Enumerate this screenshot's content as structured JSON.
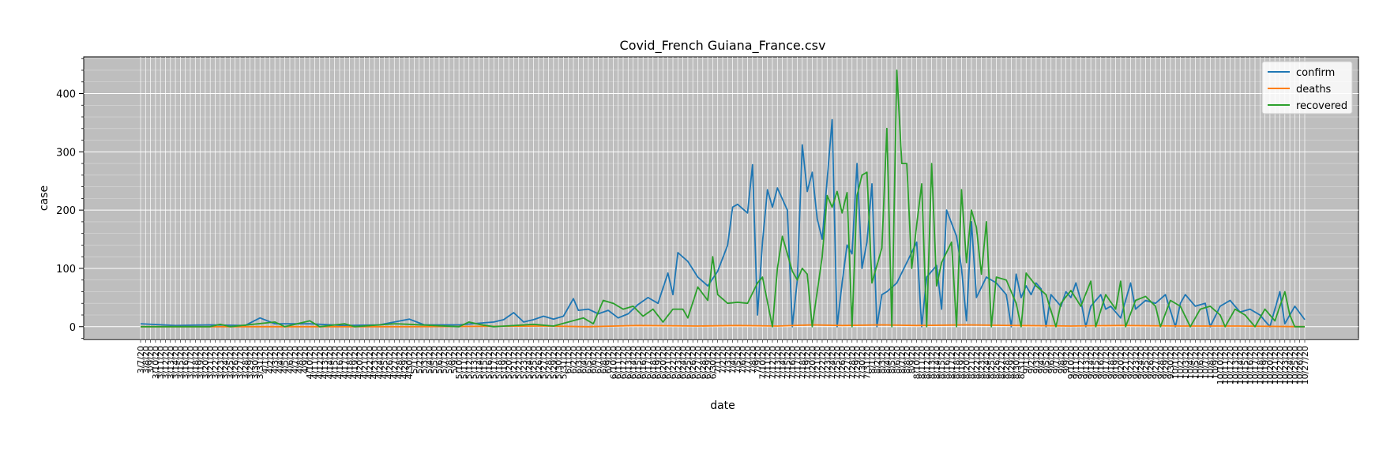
{
  "chart_data": {
    "type": "line",
    "title": "Covid_French Guiana_France.csv",
    "xlabel": "date",
    "ylabel": "case",
    "start_date": "3/7/20",
    "end_date": "10/27/20",
    "ylim": [
      -22,
      463
    ],
    "yticks": [
      0,
      100,
      200,
      300,
      400
    ],
    "grid": true,
    "legend_position": "top-right",
    "series": [
      {
        "name": "confirm",
        "color": "#1f77b4",
        "points": [
          [
            "3/7/20",
            5
          ],
          [
            "3/14/20",
            2
          ],
          [
            "3/21/20",
            3
          ],
          [
            "3/28/20",
            2
          ],
          [
            "3/31/20",
            15
          ],
          [
            "4/3/20",
            5
          ],
          [
            "4/10/20",
            5
          ],
          [
            "4/17/20",
            2
          ],
          [
            "4/24/20",
            3
          ],
          [
            "4/27/20",
            8
          ],
          [
            "4/30/20",
            13
          ],
          [
            "5/3/20",
            3
          ],
          [
            "5/10/20",
            3
          ],
          [
            "5/17/20",
            8
          ],
          [
            "5/19/20",
            12
          ],
          [
            "5/21/20",
            24
          ],
          [
            "5/23/20",
            8
          ],
          [
            "5/25/20",
            12
          ],
          [
            "5/27/20",
            18
          ],
          [
            "5/29/20",
            13
          ],
          [
            "5/31/20",
            18
          ],
          [
            "6/2/20",
            48
          ],
          [
            "6/3/20",
            28
          ],
          [
            "6/5/20",
            30
          ],
          [
            "6/7/20",
            22
          ],
          [
            "6/9/20",
            28
          ],
          [
            "6/11/20",
            15
          ],
          [
            "6/13/20",
            22
          ],
          [
            "6/15/20",
            38
          ],
          [
            "6/17/20",
            50
          ],
          [
            "6/19/20",
            40
          ],
          [
            "6/21/20",
            92
          ],
          [
            "6/22/20",
            55
          ],
          [
            "6/23/20",
            127
          ],
          [
            "6/25/20",
            112
          ],
          [
            "6/27/20",
            85
          ],
          [
            "6/29/20",
            70
          ],
          [
            "7/1/20",
            95
          ],
          [
            "7/3/20",
            140
          ],
          [
            "7/4/20",
            205
          ],
          [
            "7/5/20",
            210
          ],
          [
            "7/7/20",
            195
          ],
          [
            "7/8/20",
            278
          ],
          [
            "7/9/20",
            20
          ],
          [
            "7/10/20",
            145
          ],
          [
            "7/11/20",
            235
          ],
          [
            "7/12/20",
            205
          ],
          [
            "7/13/20",
            238
          ],
          [
            "7/15/20",
            200
          ],
          [
            "7/16/20",
            0
          ],
          [
            "7/17/20",
            80
          ],
          [
            "7/18/20",
            312
          ],
          [
            "7/19/20",
            232
          ],
          [
            "7/20/20",
            265
          ],
          [
            "7/21/20",
            185
          ],
          [
            "7/22/20",
            150
          ],
          [
            "7/24/20",
            355
          ],
          [
            "7/25/20",
            0
          ],
          [
            "7/26/20",
            75
          ],
          [
            "7/27/20",
            140
          ],
          [
            "7/28/20",
            125
          ],
          [
            "7/29/20",
            280
          ],
          [
            "7/30/20",
            100
          ],
          [
            "7/31/20",
            145
          ],
          [
            "8/1/20",
            245
          ],
          [
            "8/2/20",
            0
          ],
          [
            "8/3/20",
            55
          ],
          [
            "8/4/20",
            60
          ],
          [
            "8/6/20",
            75
          ],
          [
            "8/8/20",
            110
          ],
          [
            "8/10/20",
            145
          ],
          [
            "8/11/20",
            0
          ],
          [
            "8/12/20",
            85
          ],
          [
            "8/14/20",
            105
          ],
          [
            "8/15/20",
            30
          ],
          [
            "8/16/20",
            200
          ],
          [
            "8/18/20",
            155
          ],
          [
            "8/19/20",
            100
          ],
          [
            "8/20/20",
            10
          ],
          [
            "8/21/20",
            180
          ],
          [
            "8/22/20",
            50
          ],
          [
            "8/24/20",
            85
          ],
          [
            "8/26/20",
            75
          ],
          [
            "8/28/20",
            55
          ],
          [
            "8/29/20",
            0
          ],
          [
            "8/30/20",
            90
          ],
          [
            "8/31/20",
            50
          ],
          [
            "9/1/20",
            70
          ],
          [
            "9/2/20",
            55
          ],
          [
            "9/3/20",
            75
          ],
          [
            "9/4/20",
            65
          ],
          [
            "9/5/20",
            0
          ],
          [
            "9/6/20",
            55
          ],
          [
            "9/8/20",
            35
          ],
          [
            "9/9/20",
            60
          ],
          [
            "9/10/20",
            50
          ],
          [
            "9/11/20",
            75
          ],
          [
            "9/12/20",
            45
          ],
          [
            "9/13/20",
            0
          ],
          [
            "9/14/20",
            35
          ],
          [
            "9/16/20",
            55
          ],
          [
            "9/17/20",
            30
          ],
          [
            "9/18/20",
            35
          ],
          [
            "9/20/20",
            15
          ],
          [
            "9/22/20",
            75
          ],
          [
            "9/23/20",
            30
          ],
          [
            "9/25/20",
            45
          ],
          [
            "9/27/20",
            40
          ],
          [
            "9/29/20",
            55
          ],
          [
            "10/1/20",
            0
          ],
          [
            "10/2/20",
            40
          ],
          [
            "10/3/20",
            55
          ],
          [
            "10/5/20",
            35
          ],
          [
            "10/7/20",
            40
          ],
          [
            "10/8/20",
            0
          ],
          [
            "10/10/20",
            35
          ],
          [
            "10/12/20",
            45
          ],
          [
            "10/14/20",
            25
          ],
          [
            "10/16/20",
            30
          ],
          [
            "10/18/20",
            20
          ],
          [
            "10/20/20",
            0
          ],
          [
            "10/22/20",
            60
          ],
          [
            "10/23/20",
            5
          ],
          [
            "10/25/20",
            35
          ],
          [
            "10/27/20",
            12
          ]
        ]
      },
      {
        "name": "deaths",
        "color": "#ff7f0e",
        "points": [
          [
            "3/7/20",
            0
          ],
          [
            "4/30/20",
            0
          ],
          [
            "5/27/20",
            1
          ],
          [
            "6/5/20",
            0
          ],
          [
            "6/15/20",
            2
          ],
          [
            "6/27/20",
            1
          ],
          [
            "7/5/20",
            2
          ],
          [
            "7/13/20",
            1
          ],
          [
            "7/20/20",
            3
          ],
          [
            "7/26/20",
            2
          ],
          [
            "8/3/20",
            3
          ],
          [
            "8/10/20",
            2
          ],
          [
            "8/20/20",
            3
          ],
          [
            "8/30/20",
            2
          ],
          [
            "9/10/20",
            1
          ],
          [
            "9/20/20",
            2
          ],
          [
            "10/2/20",
            1
          ],
          [
            "10/14/20",
            1
          ],
          [
            "10/27/20",
            0
          ]
        ]
      },
      {
        "name": "recovered",
        "color": "#2ca02c",
        "points": [
          [
            "3/7/20",
            0
          ],
          [
            "3/21/20",
            0
          ],
          [
            "3/23/20",
            4
          ],
          [
            "3/25/20",
            0
          ],
          [
            "4/3/20",
            8
          ],
          [
            "4/5/20",
            0
          ],
          [
            "4/10/20",
            10
          ],
          [
            "4/12/20",
            0
          ],
          [
            "4/17/20",
            5
          ],
          [
            "4/19/20",
            0
          ],
          [
            "4/27/20",
            5
          ],
          [
            "4/30/20",
            4
          ],
          [
            "5/10/20",
            0
          ],
          [
            "5/12/20",
            8
          ],
          [
            "5/14/20",
            4
          ],
          [
            "5/17/20",
            0
          ],
          [
            "5/25/20",
            4
          ],
          [
            "5/29/20",
            1
          ],
          [
            "6/1/20",
            8
          ],
          [
            "6/4/20",
            15
          ],
          [
            "6/6/20",
            5
          ],
          [
            "6/8/20",
            45
          ],
          [
            "6/10/20",
            40
          ],
          [
            "6/12/20",
            30
          ],
          [
            "6/14/20",
            35
          ],
          [
            "6/16/20",
            18
          ],
          [
            "6/18/20",
            30
          ],
          [
            "6/20/20",
            8
          ],
          [
            "6/22/20",
            30
          ],
          [
            "6/24/20",
            30
          ],
          [
            "6/25/20",
            15
          ],
          [
            "6/27/20",
            68
          ],
          [
            "6/29/20",
            45
          ],
          [
            "6/30/20",
            120
          ],
          [
            "7/1/20",
            55
          ],
          [
            "7/3/20",
            40
          ],
          [
            "7/5/20",
            42
          ],
          [
            "7/7/20",
            40
          ],
          [
            "7/9/20",
            75
          ],
          [
            "7/10/20",
            85
          ],
          [
            "7/12/20",
            0
          ],
          [
            "7/13/20",
            100
          ],
          [
            "7/14/20",
            155
          ],
          [
            "7/16/20",
            95
          ],
          [
            "7/17/20",
            80
          ],
          [
            "7/18/20",
            100
          ],
          [
            "7/19/20",
            90
          ],
          [
            "7/20/20",
            0
          ],
          [
            "7/22/20",
            120
          ],
          [
            "7/23/20",
            225
          ],
          [
            "7/24/20",
            205
          ],
          [
            "7/25/20",
            232
          ],
          [
            "7/26/20",
            195
          ],
          [
            "7/27/20",
            230
          ],
          [
            "7/28/20",
            0
          ],
          [
            "7/29/20",
            225
          ],
          [
            "7/30/20",
            260
          ],
          [
            "7/31/20",
            265
          ],
          [
            "8/1/20",
            75
          ],
          [
            "8/3/20",
            135
          ],
          [
            "8/4/20",
            340
          ],
          [
            "8/5/20",
            0
          ],
          [
            "8/6/20",
            440
          ],
          [
            "8/7/20",
            280
          ],
          [
            "8/8/20",
            280
          ],
          [
            "8/9/20",
            100
          ],
          [
            "8/10/20",
            175
          ],
          [
            "8/11/20",
            245
          ],
          [
            "8/12/20",
            0
          ],
          [
            "8/13/20",
            280
          ],
          [
            "8/14/20",
            70
          ],
          [
            "8/15/20",
            110
          ],
          [
            "8/17/20",
            145
          ],
          [
            "8/18/20",
            0
          ],
          [
            "8/19/20",
            235
          ],
          [
            "8/20/20",
            110
          ],
          [
            "8/21/20",
            200
          ],
          [
            "8/22/20",
            170
          ],
          [
            "8/23/20",
            90
          ],
          [
            "8/24/20",
            180
          ],
          [
            "8/25/20",
            0
          ],
          [
            "8/26/20",
            85
          ],
          [
            "8/28/20",
            80
          ],
          [
            "8/30/20",
            40
          ],
          [
            "8/31/20",
            0
          ],
          [
            "9/1/20",
            92
          ],
          [
            "9/3/20",
            70
          ],
          [
            "9/5/20",
            55
          ],
          [
            "9/7/20",
            0
          ],
          [
            "9/8/20",
            40
          ],
          [
            "9/10/20",
            62
          ],
          [
            "9/12/20",
            35
          ],
          [
            "9/14/20",
            78
          ],
          [
            "9/15/20",
            0
          ],
          [
            "9/17/20",
            55
          ],
          [
            "9/19/20",
            30
          ],
          [
            "9/20/20",
            78
          ],
          [
            "9/21/20",
            0
          ],
          [
            "9/23/20",
            45
          ],
          [
            "9/25/20",
            52
          ],
          [
            "9/27/20",
            35
          ],
          [
            "9/28/20",
            0
          ],
          [
            "9/30/20",
            45
          ],
          [
            "10/2/20",
            35
          ],
          [
            "10/4/20",
            0
          ],
          [
            "10/6/20",
            30
          ],
          [
            "10/8/20",
            35
          ],
          [
            "10/10/20",
            20
          ],
          [
            "10/11/20",
            0
          ],
          [
            "10/13/20",
            30
          ],
          [
            "10/15/20",
            20
          ],
          [
            "10/17/20",
            0
          ],
          [
            "10/19/20",
            30
          ],
          [
            "10/21/20",
            10
          ],
          [
            "10/23/20",
            60
          ],
          [
            "10/24/20",
            20
          ],
          [
            "10/25/20",
            0
          ],
          [
            "10/27/20",
            0
          ]
        ]
      }
    ]
  }
}
